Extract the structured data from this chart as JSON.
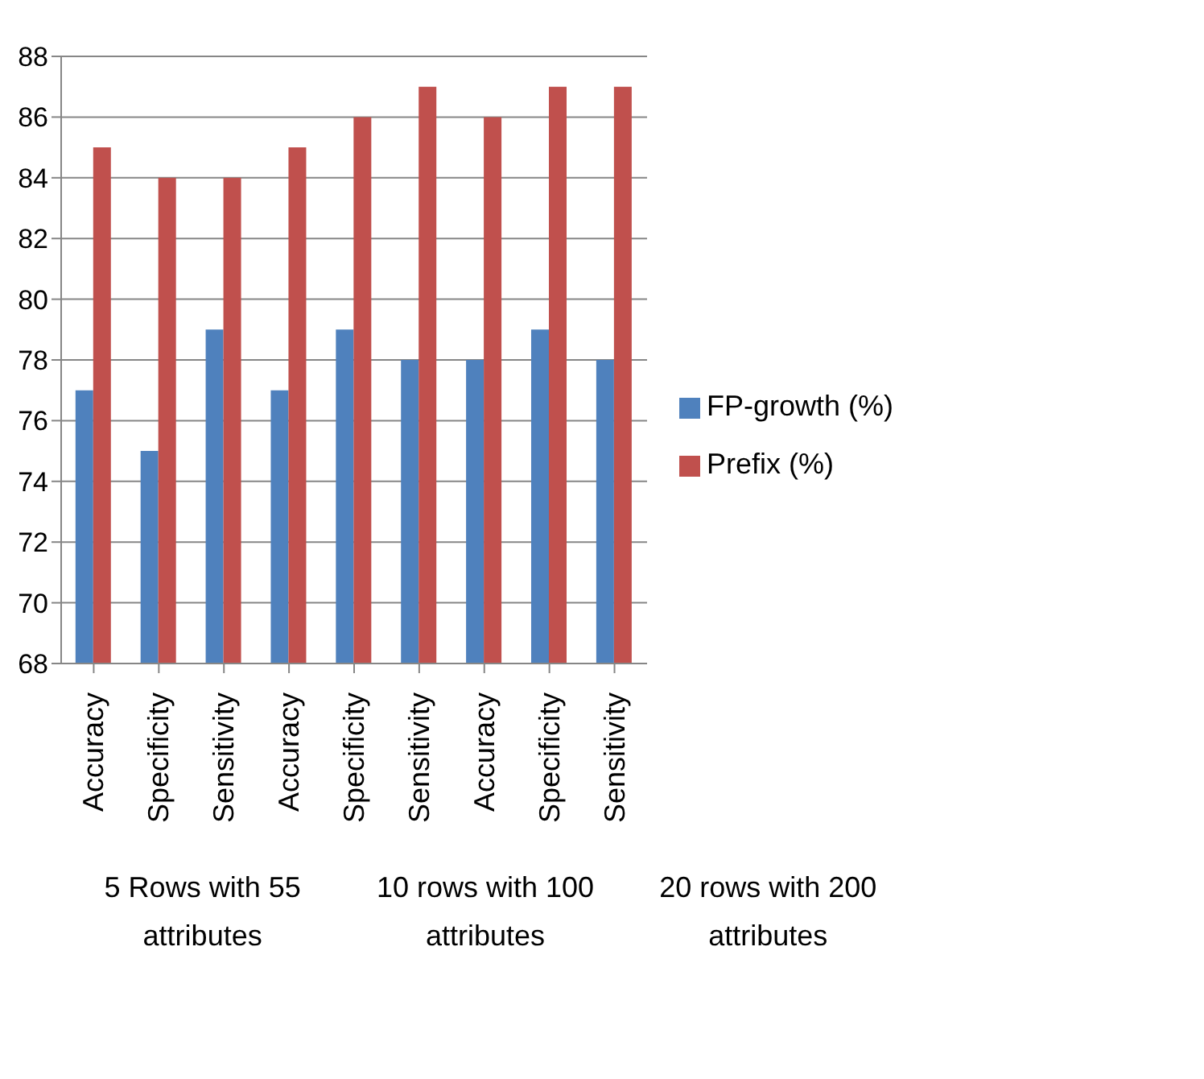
{
  "chart_data": {
    "type": "bar",
    "categories": [
      "Accuracy",
      "Specificity",
      "Sensitivity",
      "Accuracy",
      "Specificity",
      "Sensitivity",
      "Accuracy",
      "Specificity",
      "Sensitivity"
    ],
    "series": [
      {
        "name": "FP-growth  (%)",
        "color": "#4f81bd",
        "values": [
          77,
          75,
          79,
          77,
          79,
          78,
          78,
          79,
          78
        ]
      },
      {
        "name": "Prefix (%)",
        "color": "#c0504d",
        "values": [
          85,
          84,
          84,
          85,
          86,
          87,
          86,
          87,
          87
        ]
      }
    ],
    "ylim": [
      68,
      88
    ],
    "yticks": [
      68,
      70,
      72,
      74,
      76,
      78,
      80,
      82,
      84,
      86,
      88
    ],
    "grid": "y",
    "legend": "right",
    "annotations": [
      "5 Rows with 55 attributes",
      "10 rows with 100 attributes",
      "20 rows with 200 attributes"
    ]
  }
}
